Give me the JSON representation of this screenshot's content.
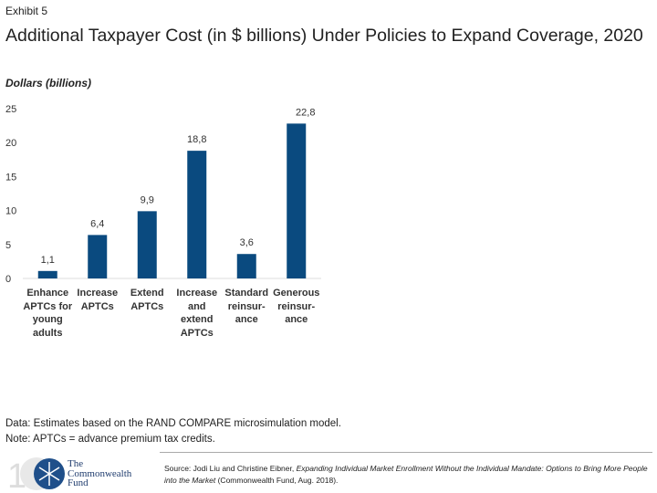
{
  "header": {
    "exhibit": "Exhibit 5",
    "title": "Additional Taxpayer Cost (in $ billions) Under Policies to Expand Coverage, 2020"
  },
  "chart_data": {
    "type": "bar",
    "title": "Additional Taxpayer Cost (in $ billions) Under Policies to Expand Coverage, 2020",
    "ylabel": "Dollars (billions)",
    "xlabel": "",
    "ylim": [
      0,
      25
    ],
    "yticks": [
      0,
      5,
      10,
      15,
      20,
      25
    ],
    "grid": false,
    "categories": [
      "Enhance APTCs for young adults",
      "Increase APTCs",
      "Extend APTCs",
      "Increase and extend APTCs",
      "Standard reinsur-ance",
      "Generous reinsur-ance"
    ],
    "values": [
      1.1,
      6.4,
      9.9,
      18.8,
      3.6,
      22.8
    ],
    "data_labels": [
      "1,1",
      "6,4",
      "9,9",
      "18,8",
      "3,6",
      "22,8"
    ],
    "bar_color": "#0a4a7f"
  },
  "notes": {
    "data": "Data: Estimates based on the RAND COMPARE microsimulation model.",
    "note": "Note: APTCs = advance premium tax credits."
  },
  "source": {
    "prefix": "Source: Jodi Liu and Christine Eibner, ",
    "italic": "Expanding Individual Market Enrollment Without the Individual Mandate: Options to Bring More People into the Market",
    "suffix": " (Commonwealth Fund, Aug. 2018)."
  },
  "logo": {
    "text": "The Commonwealth Fund"
  }
}
